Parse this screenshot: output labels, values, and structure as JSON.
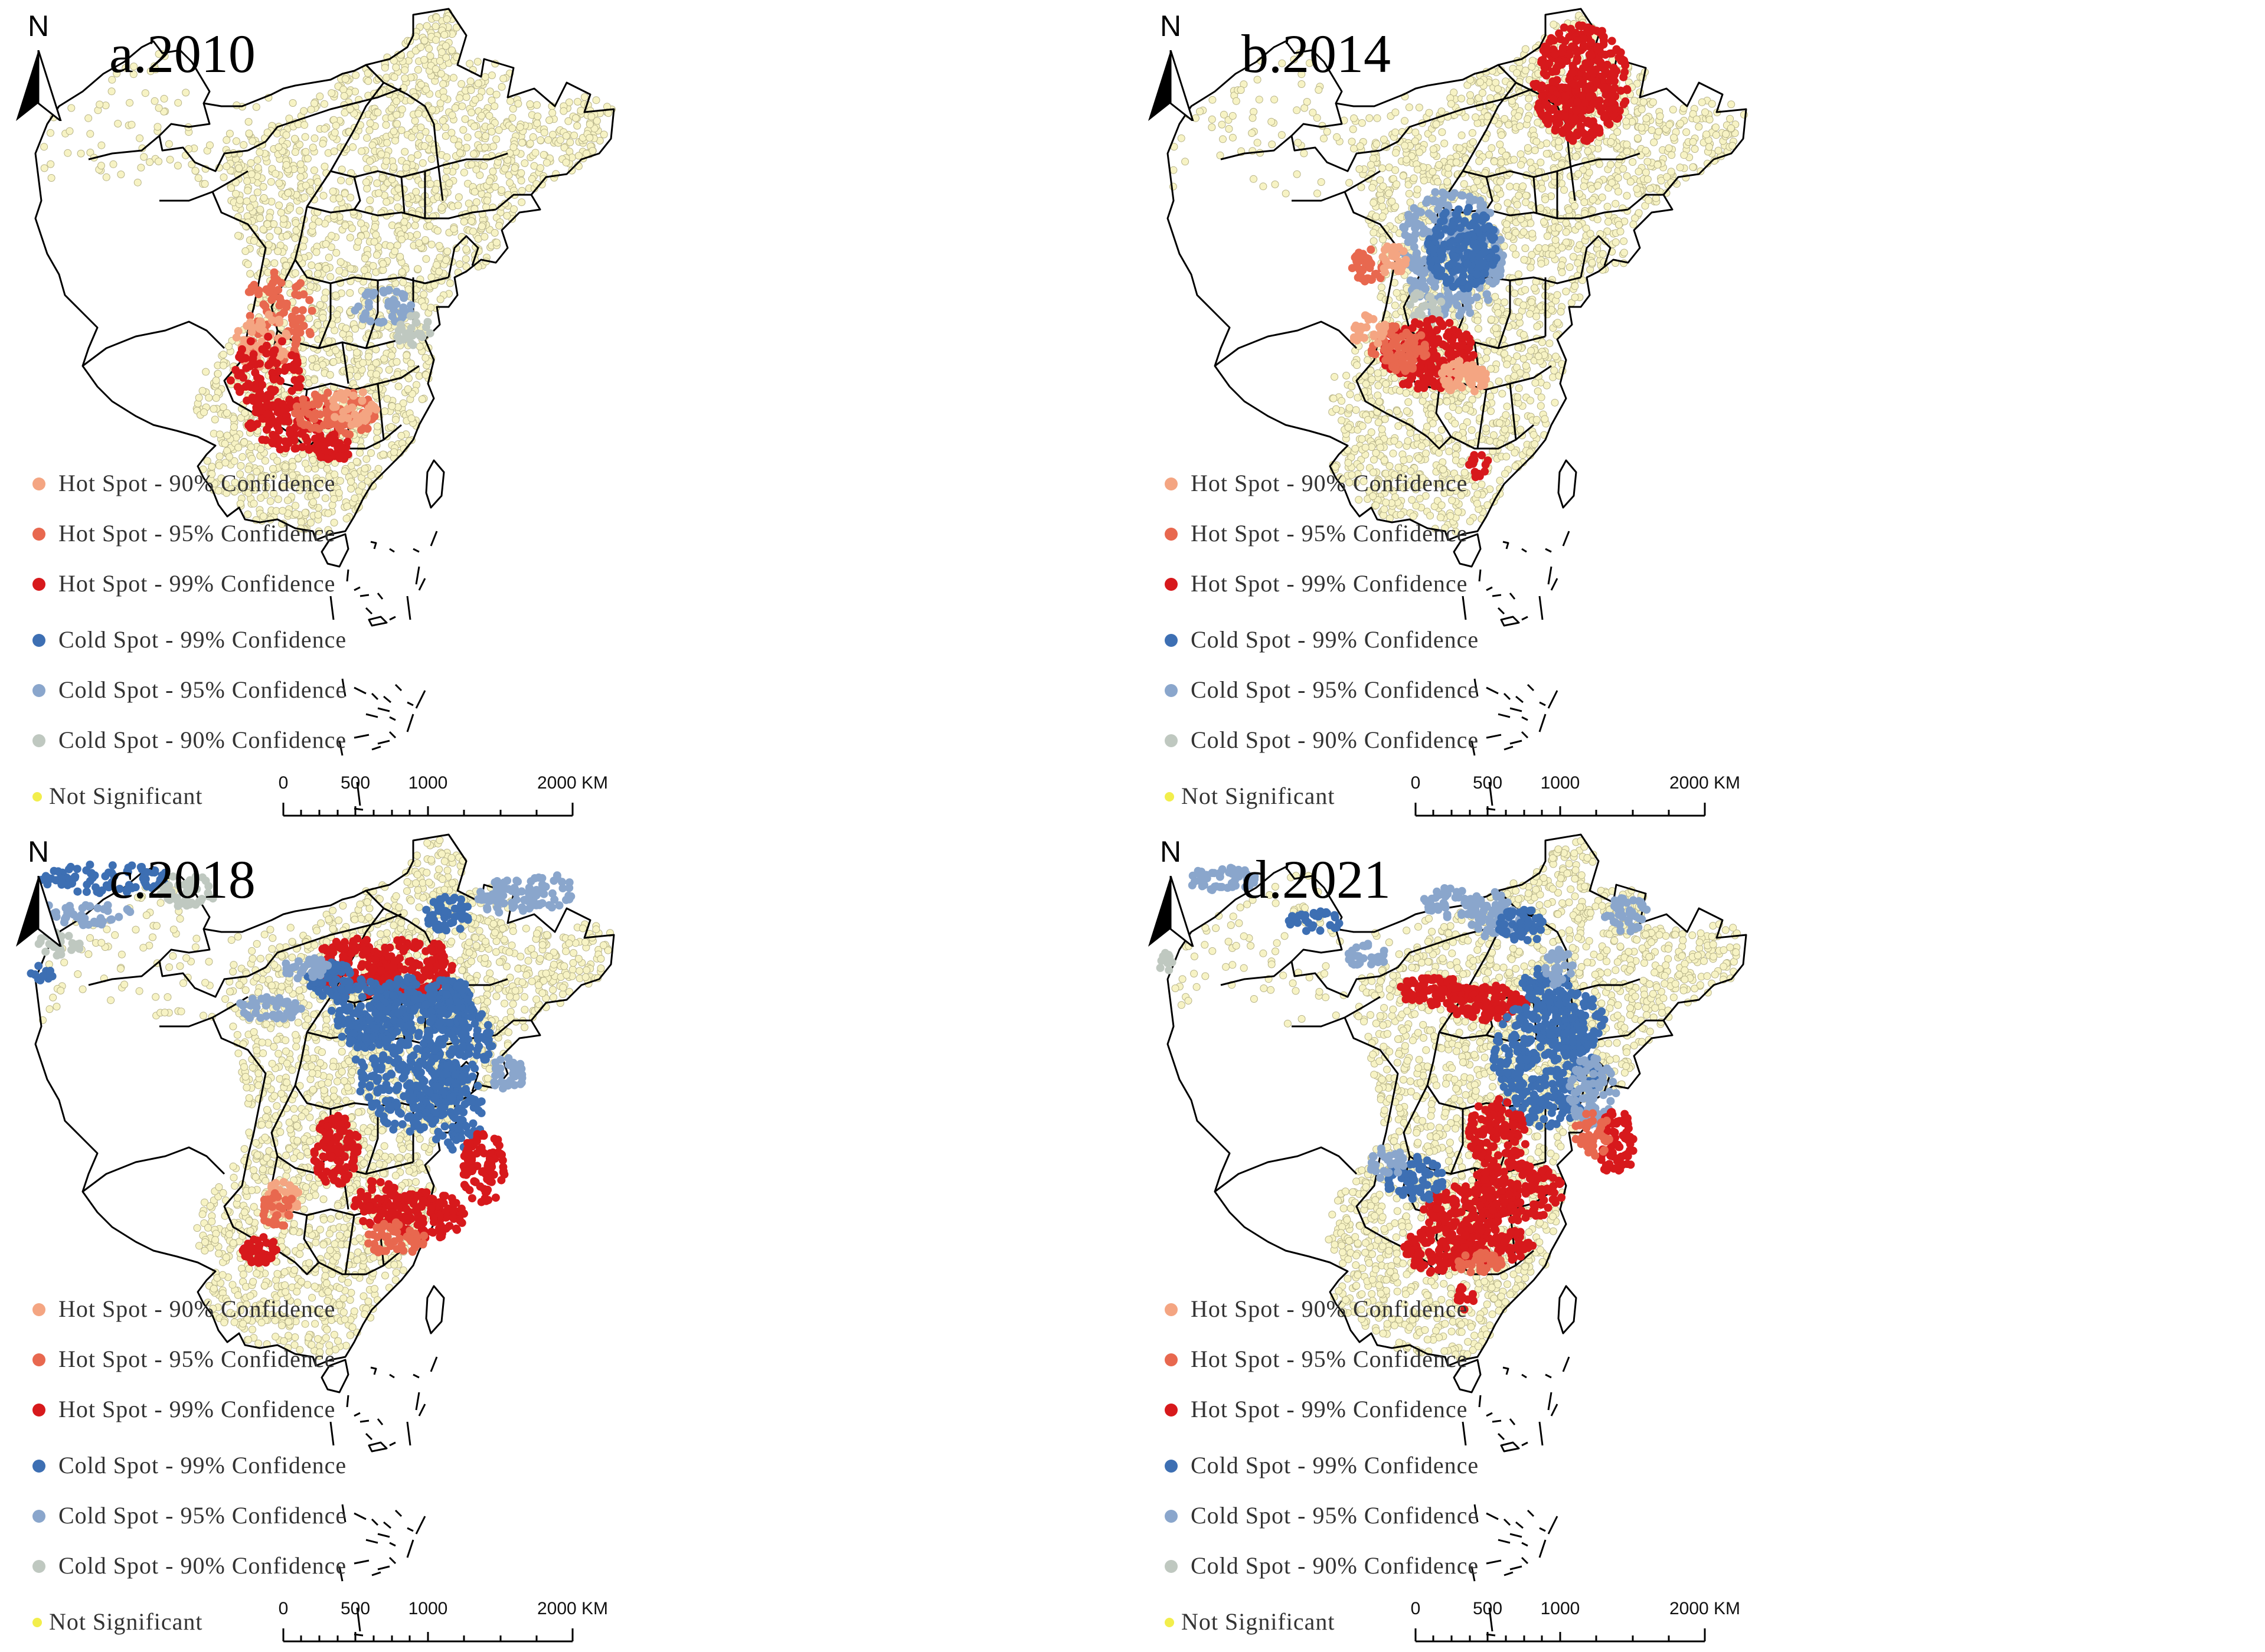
{
  "figure": {
    "north_label": "N",
    "panels": [
      {
        "title": "a.2010",
        "pattern": "2010"
      },
      {
        "title": "b.2014",
        "pattern": "2014"
      },
      {
        "title": "c.2018",
        "pattern": "2018"
      },
      {
        "title": "d.2021",
        "pattern": "2021"
      }
    ],
    "legend": [
      {
        "label": "Hot Spot - 90% Confidence",
        "color": "#f4a582"
      },
      {
        "label": "Hot Spot - 95% Confidence",
        "color": "#e8684f"
      },
      {
        "label": "Hot Spot - 99% Confidence",
        "color": "#d7191c"
      },
      {
        "label": "Cold Spot - 99% Confidence",
        "color": "#3d6fb3"
      },
      {
        "label": "Cold Spot - 95% Confidence",
        "color": "#8aa6cc"
      },
      {
        "label": "Cold Spot - 90% Confidence",
        "color": "#bfc8c0"
      },
      {
        "label": "Not Significant",
        "color": "#f2ee4c"
      }
    ],
    "point_colors": {
      "not_significant_fill": "#f7f3c4",
      "not_significant_stroke": "#b8b48a"
    },
    "scale_bar": {
      "ticks": [
        "0",
        "500",
        "1000",
        "2000 KM"
      ]
    }
  }
}
